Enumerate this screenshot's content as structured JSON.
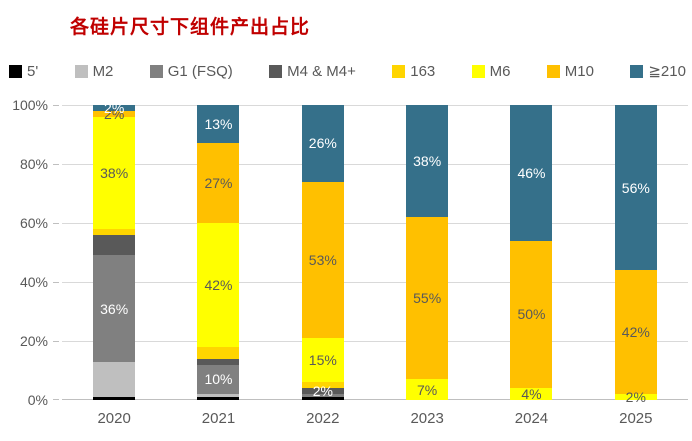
{
  "title": "各硅片尺寸下组件产出占比",
  "chart_data": {
    "type": "bar",
    "stacked": true,
    "title": "各硅片尺寸下组件产出占比",
    "title_color": "#C00000",
    "categories": [
      "2020",
      "2021",
      "2022",
      "2023",
      "2024",
      "2025"
    ],
    "y_ticks": [
      "0%",
      "20%",
      "40%",
      "60%",
      "80%",
      "100%"
    ],
    "ylim": [
      0,
      100
    ],
    "grid": true,
    "grid_color": "#D9D9D9",
    "axis_color": "#BFBFBF",
    "text_color": "#595959",
    "legend_position": "top",
    "series": [
      {
        "name": "5'",
        "color": "#000000",
        "label_color": "#FFFFFF",
        "values": [
          1,
          1,
          1,
          0,
          0,
          0
        ],
        "labels": [
          "",
          "",
          "",
          "",
          "",
          ""
        ]
      },
      {
        "name": "M2",
        "color": "#BFBFBF",
        "label_color": "#404040",
        "values": [
          12,
          1,
          0,
          0,
          0,
          0
        ],
        "labels": [
          "",
          "",
          "",
          "",
          "",
          ""
        ]
      },
      {
        "name": "G1 (FSQ)",
        "color": "#808080",
        "label_color": "#FFFFFF",
        "values": [
          36,
          10,
          1,
          0,
          0,
          0
        ],
        "labels": [
          "36%",
          "10%",
          "",
          "",
          "",
          ""
        ]
      },
      {
        "name": "M4 & M4+",
        "color": "#595959",
        "label_color": "#FFFFFF",
        "values": [
          7,
          2,
          2,
          0,
          0,
          0
        ],
        "labels": [
          "",
          "",
          "2%",
          "",
          "",
          ""
        ]
      },
      {
        "name": "163",
        "color": "#FFD500",
        "label_color": "#595959",
        "values": [
          2,
          4,
          2,
          0,
          0,
          0
        ],
        "labels": [
          "",
          "",
          "",
          "",
          "",
          ""
        ]
      },
      {
        "name": "M6",
        "color": "#FFFF00",
        "label_color": "#595959",
        "values": [
          38,
          42,
          15,
          7,
          4,
          2
        ],
        "labels": [
          "38%",
          "42%",
          "15%",
          "7%",
          "4%",
          "2%"
        ]
      },
      {
        "name": "M10",
        "color": "#FFC000",
        "label_color": "#595959",
        "values": [
          2,
          27,
          53,
          55,
          50,
          42
        ],
        "labels": [
          "2%",
          "27%",
          "53%",
          "55%",
          "50%",
          "42%"
        ]
      },
      {
        "name": "≧210",
        "color": "#35708A",
        "label_color": "#FFFFFF",
        "values": [
          2,
          13,
          26,
          38,
          46,
          56
        ],
        "labels": [
          "2%",
          "13%",
          "26%",
          "38%",
          "46%",
          "56%"
        ]
      }
    ]
  }
}
